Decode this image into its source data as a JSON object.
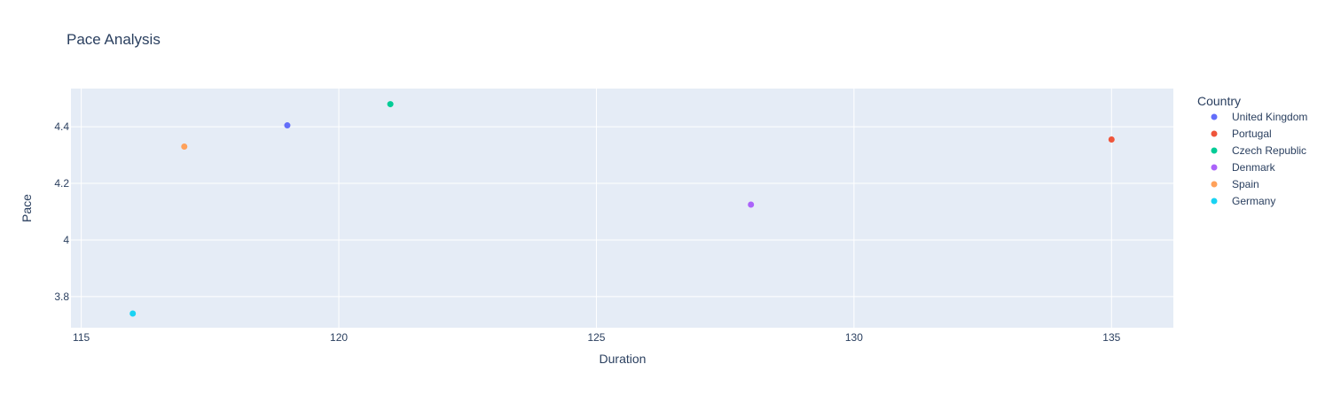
{
  "chart_data": {
    "type": "scatter",
    "title": "Pace Analysis",
    "xlabel": "Duration",
    "ylabel": "Pace",
    "xlim": [
      114.8,
      136.2
    ],
    "ylim": [
      3.69,
      4.535
    ],
    "xticks": [
      115,
      120,
      125,
      130,
      135
    ],
    "yticks": [
      3.8,
      4,
      4.2,
      4.4
    ],
    "ytick_labels": [
      "3.8",
      "4",
      "4.2",
      "4.4"
    ],
    "grid": true,
    "legend_title": "Country",
    "legend_position": "right",
    "series": [
      {
        "name": "United Kingdom",
        "color": "#636efa",
        "points": [
          {
            "x": 119,
            "y": 4.405
          }
        ]
      },
      {
        "name": "Portugal",
        "color": "#EF553B",
        "points": [
          {
            "x": 135,
            "y": 4.355
          }
        ]
      },
      {
        "name": "Czech Republic",
        "color": "#00cc96",
        "points": [
          {
            "x": 121,
            "y": 4.48
          }
        ]
      },
      {
        "name": "Denmark",
        "color": "#ab63fa",
        "points": [
          {
            "x": 128,
            "y": 4.125
          }
        ]
      },
      {
        "name": "Spain",
        "color": "#FFA15A",
        "points": [
          {
            "x": 117,
            "y": 4.33
          }
        ]
      },
      {
        "name": "Germany",
        "color": "#19d3f3",
        "points": [
          {
            "x": 116,
            "y": 3.74
          }
        ]
      }
    ]
  },
  "colors": {
    "plot_bg": "#e5ecf6",
    "grid": "#ffffff",
    "text": "#2a3f5f",
    "title": "#2a3f5f"
  }
}
